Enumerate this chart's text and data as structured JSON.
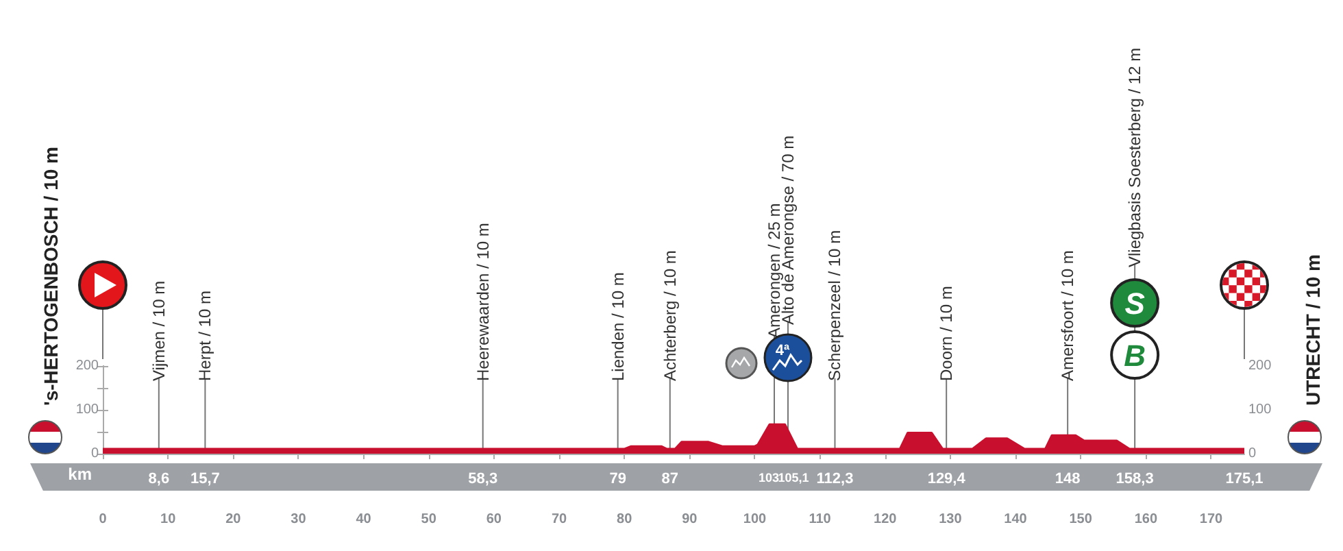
{
  "chart_data": {
    "type": "area",
    "x": [
      0,
      80,
      81,
      85.7,
      86.5,
      87.8,
      88.8,
      92.9,
      95,
      100,
      100.5,
      102.3,
      104.6,
      106.5,
      122.3,
      123.5,
      127.1,
      128.8,
      133.4,
      135.5,
      138.7,
      141.4,
      144.6,
      145.6,
      149.2,
      150.5,
      155.5,
      157.5,
      175.1
    ],
    "series": [
      {
        "color": "#c8102e",
        "values": [
          10,
          10,
          16,
          16,
          10,
          10,
          26,
          26,
          16,
          16,
          20,
          66,
          66,
          10,
          10,
          47,
          47,
          10,
          10,
          34,
          34,
          10,
          10,
          41,
          41,
          29,
          29,
          10,
          10
        ]
      }
    ],
    "xlim": [
      0,
      175.1
    ],
    "xticks": [
      0,
      10,
      20,
      30,
      40,
      50,
      60,
      70,
      80,
      90,
      100,
      110,
      120,
      130,
      140,
      150,
      160,
      170
    ],
    "x2lim": [
      0,
      175.1
    ],
    "x2label": "km",
    "x2ticks": [
      {
        "value": 8.6,
        "label": "8,6"
      },
      {
        "value": 15.7,
        "label": "15,7"
      },
      {
        "value": 58.3,
        "label": "58,3"
      },
      79,
      87,
      103,
      {
        "value": 105.1,
        "label": "105,1"
      },
      {
        "value": 112.3,
        "label": "112,3"
      },
      {
        "value": 129.4,
        "label": "129,4"
      },
      148,
      {
        "value": 158.3,
        "label": "158,3"
      },
      {
        "value": 175.1,
        "label": "175,1"
      }
    ],
    "ylim": [
      0,
      200
    ],
    "yticks": [
      0,
      {
        "value": 50,
        "label": null
      },
      100,
      {
        "value": 150,
        "label": null
      },
      200
    ],
    "y2lim": [
      0,
      200
    ],
    "y2ticks": [
      0,
      {
        "value": 50,
        "label": null
      },
      100,
      {
        "value": 150,
        "label": null
      },
      200
    ],
    "ref_lines": [
      {
        "axis": "x",
        "value": 8.6,
        "label": "Vijmen / 10 m"
      },
      {
        "axis": "x",
        "value": 15.7,
        "label": "Herpt / 10 m"
      },
      {
        "axis": "x",
        "value": 58.3,
        "label": "Heerewaarden / 10 m"
      },
      {
        "axis": "x",
        "value": 79,
        "label": "Lienden / 10 m"
      },
      {
        "axis": "x",
        "value": 87,
        "label": "Achterberg / 10 m"
      },
      {
        "axis": "x",
        "value": 103,
        "label": "Amerongen / 25 m"
      },
      {
        "axis": "x",
        "value": 105.1,
        "label": "Alto de Amerongse / 70 m"
      },
      {
        "axis": "x",
        "value": 112.3,
        "label": "Scherpenzeel / 10 m"
      },
      {
        "axis": "x",
        "value": 129.4,
        "label": "Doorn / 10 m"
      },
      {
        "axis": "x",
        "value": 148,
        "label": "Amersfoort / 10 m"
      },
      {
        "axis": "x",
        "value": 158.3,
        "label": "Vliegbasis Soesterberg / 12 m"
      }
    ],
    "annotations": [
      "'s-HERTOGENBOSCH / 10 m",
      "UTRECHT / 10 m",
      "4ª",
      "S",
      "B"
    ],
    "marker": "none",
    "grid": false
  }
}
